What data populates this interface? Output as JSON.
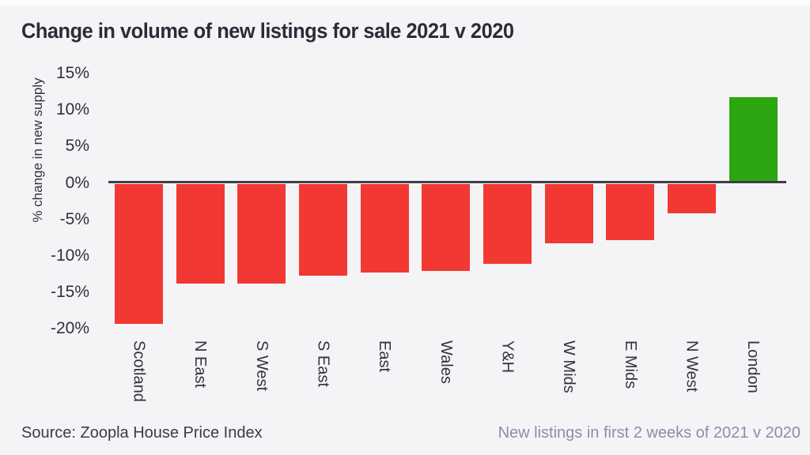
{
  "title": "Change in volume of new listings for sale 2021 v 2020",
  "footer": {
    "source": "Source: Zoopla House Price Index",
    "note": "New listings in first 2 weeks of 2021 v 2020"
  },
  "colors": {
    "background": "#f4f4f7",
    "title_text": "#2c2c38",
    "axis_line": "#3e3e48",
    "tick_text": "#303039",
    "note_text": "#8f8ba9",
    "negative_bar": "#f23833",
    "positive_bar": "#2ba611"
  },
  "chart_data": {
    "type": "bar",
    "title": "Change in volume of new listings for sale 2021 v 2020",
    "xlabel": "",
    "ylabel": "% change in new supply",
    "categories": [
      "Scotland",
      "N East",
      "S West",
      "S East",
      "East",
      "Wales",
      "Y&H",
      "W Mids",
      "E Mids",
      "N West",
      "London"
    ],
    "values": [
      -19.4,
      -13.9,
      -13.9,
      -12.8,
      -12.4,
      -12.1,
      -11.2,
      -8.3,
      -7.9,
      -4.2,
      11.7
    ],
    "yticks": [
      15,
      10,
      5,
      0,
      -5,
      -10,
      -15,
      -20
    ],
    "ytick_labels": [
      "15%",
      "10%",
      "5%",
      "0%",
      "-5%",
      "-10%",
      "-15%",
      "-20%"
    ],
    "ylim": [
      -21,
      16
    ],
    "grid": false,
    "legend": false,
    "bar_color_rule": "negative values red (#f23833), positive values green (#2ba611)",
    "annotation": "New listings in first 2 weeks of 2021 v 2020"
  }
}
